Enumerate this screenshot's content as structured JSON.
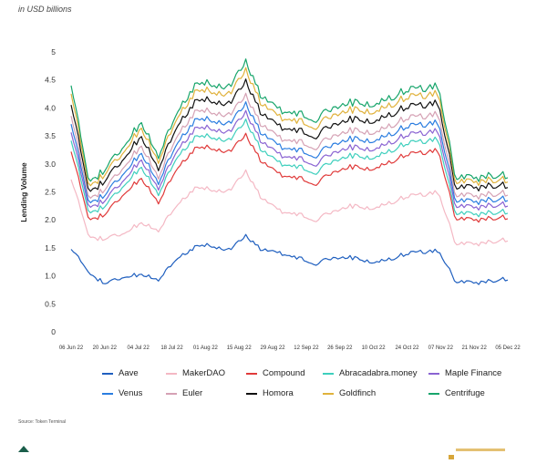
{
  "header": {
    "title_fragment": "",
    "subtitle": "in USD billions"
  },
  "source": "Source: Token Terminal",
  "chart_data": {
    "type": "line",
    "stacked": true,
    "title": "",
    "subtitle": "in USD billions",
    "ylabel": "Lending Volume",
    "xlabel": "",
    "ylim": [
      0,
      5
    ],
    "yticks": [
      "0",
      "0.5",
      "1.0",
      "1.5",
      "2.0",
      "2.5",
      "3.0",
      "3.5",
      "4.0",
      "4.5",
      "5"
    ],
    "xticks": [
      "06 Jun 22",
      "20 Jun 22",
      "04 Jul 22",
      "18 Jul 22",
      "01 Aug 22",
      "15 Aug 22",
      "29 Aug 22",
      "12 Sep 22",
      "26 Sep 22",
      "10 Oct 22",
      "24 Oct 22",
      "07 Nov 22",
      "21 Nov 22",
      "05 Dec 22"
    ],
    "grid": false,
    "legend_position": "bottom",
    "series": [
      {
        "name": "Aave",
        "color": "#1f5fbf",
        "values": [
          1.5,
          1.05,
          0.85,
          0.97,
          1.03,
          0.92,
          1.3,
          1.5,
          1.55,
          1.45,
          1.7,
          1.45,
          1.4,
          1.32,
          1.22,
          1.32,
          1.33,
          1.25,
          1.28,
          1.38,
          1.43,
          1.45,
          0.92,
          0.86,
          0.9,
          0.95
        ]
      },
      {
        "name": "MakerDAO",
        "color": "#f4b8c4",
        "values": [
          2.75,
          1.7,
          1.65,
          1.75,
          1.95,
          1.8,
          2.25,
          2.55,
          2.55,
          2.5,
          2.85,
          2.35,
          2.15,
          2.1,
          2.0,
          2.15,
          2.25,
          2.2,
          2.28,
          2.4,
          2.45,
          2.5,
          1.6,
          1.55,
          1.6,
          1.65
        ]
      },
      {
        "name": "Compound",
        "color": "#e03a3a",
        "values": [
          3.25,
          2.0,
          2.1,
          2.45,
          2.75,
          2.3,
          2.9,
          3.25,
          3.3,
          3.2,
          3.5,
          3.0,
          2.8,
          2.75,
          2.65,
          2.85,
          2.95,
          2.9,
          3.0,
          3.15,
          3.2,
          3.25,
          2.05,
          1.98,
          2.02,
          2.05
        ]
      },
      {
        "name": "Abracadabra.money",
        "color": "#3ecfbd",
        "values": [
          3.45,
          2.12,
          2.25,
          2.6,
          2.95,
          2.45,
          3.1,
          3.45,
          3.5,
          3.4,
          3.75,
          3.2,
          3.0,
          2.95,
          2.85,
          3.05,
          3.15,
          3.1,
          3.2,
          3.35,
          3.4,
          3.45,
          2.15,
          2.08,
          2.12,
          2.15
        ]
      },
      {
        "name": "Maple Finance",
        "color": "#8a63d2",
        "values": [
          3.6,
          2.22,
          2.35,
          2.7,
          3.08,
          2.55,
          3.22,
          3.6,
          3.65,
          3.55,
          3.9,
          3.35,
          3.15,
          3.1,
          3.0,
          3.2,
          3.3,
          3.25,
          3.35,
          3.5,
          3.55,
          3.6,
          2.28,
          2.2,
          2.25,
          2.28
        ]
      },
      {
        "name": "Venus",
        "color": "#2a7de0",
        "values": [
          3.75,
          2.3,
          2.45,
          2.82,
          3.2,
          2.65,
          3.35,
          3.75,
          3.8,
          3.7,
          4.05,
          3.5,
          3.3,
          3.25,
          3.15,
          3.35,
          3.45,
          3.4,
          3.5,
          3.65,
          3.7,
          3.75,
          2.38,
          2.3,
          2.35,
          2.38
        ]
      },
      {
        "name": "Euler",
        "color": "#d5a1b4",
        "values": [
          3.9,
          2.38,
          2.55,
          2.93,
          3.33,
          2.75,
          3.48,
          3.9,
          3.95,
          3.85,
          4.2,
          3.65,
          3.45,
          3.4,
          3.3,
          3.5,
          3.6,
          3.55,
          3.65,
          3.8,
          3.85,
          3.9,
          2.48,
          2.4,
          2.45,
          2.48
        ]
      },
      {
        "name": "Homora",
        "color": "#111111",
        "values": [
          4.1,
          2.5,
          2.7,
          3.08,
          3.5,
          2.9,
          3.65,
          4.08,
          4.15,
          4.05,
          4.45,
          3.85,
          3.65,
          3.6,
          3.5,
          3.7,
          3.8,
          3.75,
          3.85,
          4.0,
          4.05,
          4.1,
          2.62,
          2.55,
          2.6,
          2.62
        ]
      },
      {
        "name": "Goldfinch",
        "color": "#e0b23c",
        "values": [
          4.3,
          2.6,
          2.82,
          3.2,
          3.65,
          3.03,
          3.8,
          4.25,
          4.32,
          4.22,
          4.65,
          4.02,
          3.82,
          3.77,
          3.67,
          3.87,
          3.97,
          3.92,
          4.02,
          4.17,
          4.22,
          4.27,
          2.72,
          2.65,
          2.7,
          2.72
        ]
      },
      {
        "name": "Centrifuge",
        "color": "#17a56b",
        "values": [
          4.45,
          2.68,
          2.9,
          3.3,
          3.75,
          3.12,
          3.9,
          4.37,
          4.45,
          4.35,
          4.8,
          4.15,
          3.95,
          3.9,
          3.8,
          4.0,
          4.1,
          4.05,
          4.15,
          4.3,
          4.35,
          4.4,
          2.8,
          2.72,
          2.78,
          2.8
        ]
      }
    ]
  }
}
